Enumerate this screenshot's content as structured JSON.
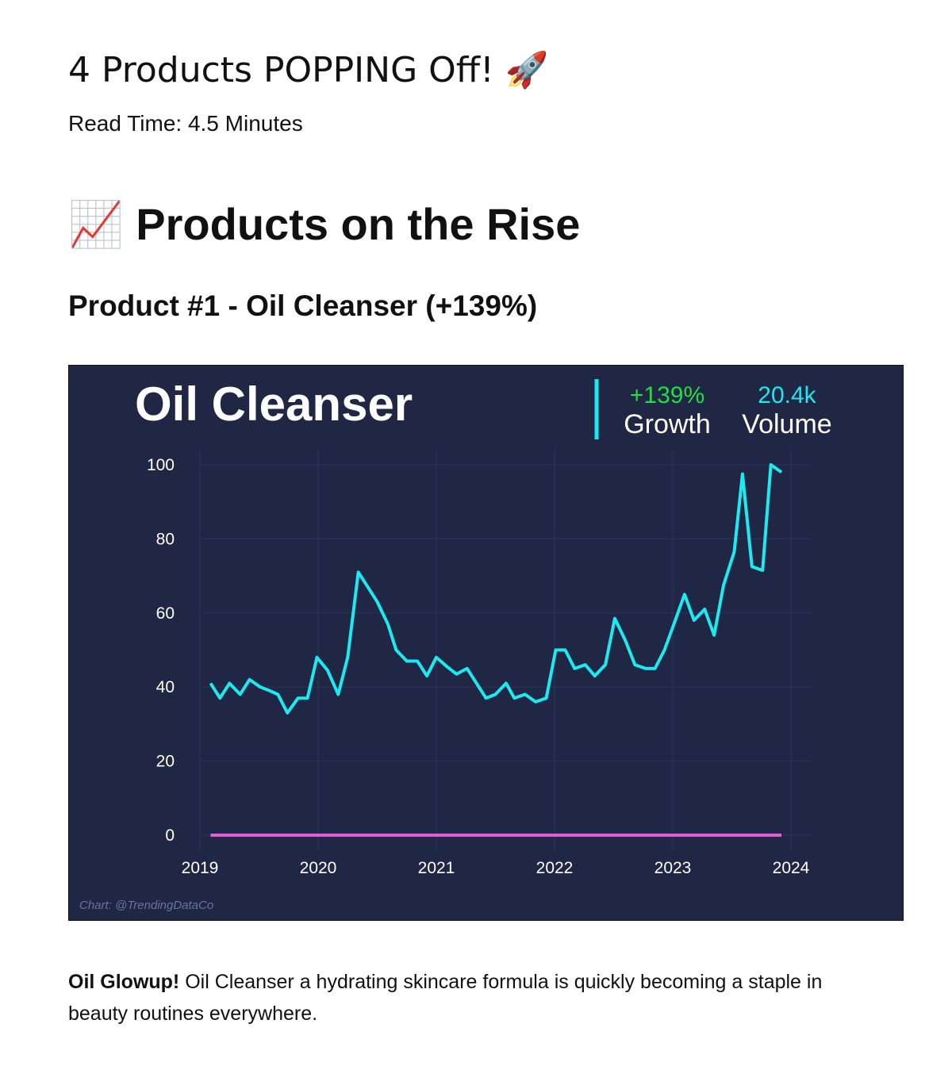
{
  "header": {
    "title": "4 Products POPPING Off! 🚀",
    "read_time": "Read Time: 4.5 Minutes"
  },
  "section": {
    "title": "📈 Products on the Rise"
  },
  "product": {
    "title": "Product #1 - Oil Cleanser (+139%)"
  },
  "chart_data": {
    "type": "line",
    "title": "Oil Cleanser",
    "annotations": {
      "growth_value": "+139%",
      "growth_label": "Growth",
      "volume_value": "20.4k",
      "volume_label": "Volume",
      "credit": "Chart: @TrendingDataCo"
    },
    "x": [
      2019.09,
      2019.17,
      2019.25,
      2019.34,
      2019.42,
      2019.51,
      2019.59,
      2019.66,
      2019.74,
      2019.83,
      2019.91,
      2019.99,
      2020.08,
      2020.17,
      2020.25,
      2020.34,
      2020.42,
      2020.5,
      2020.59,
      2020.66,
      2020.75,
      2020.84,
      2020.92,
      2021.0,
      2021.09,
      2021.17,
      2021.26,
      2021.34,
      2021.42,
      2021.5,
      2021.59,
      2021.66,
      2021.75,
      2021.84,
      2021.93,
      2022.01,
      2022.09,
      2022.17,
      2022.26,
      2022.34,
      2022.43,
      2022.51,
      2022.6,
      2022.68,
      2022.77,
      2022.85,
      2022.93,
      2023.01,
      2023.1,
      2023.18,
      2023.27,
      2023.35,
      2023.43,
      2023.52,
      2023.59,
      2023.67,
      2023.76,
      2023.83,
      2023.92
    ],
    "series": [
      {
        "color": "#1de9f0",
        "values": [
          41,
          37,
          41,
          38,
          42,
          40,
          39,
          38,
          33,
          37,
          37,
          48,
          44.5,
          38,
          48,
          71,
          67,
          63,
          57,
          50,
          47,
          47,
          43,
          48,
          45.5,
          43.5,
          45,
          41,
          37,
          38,
          41,
          37,
          38,
          36,
          37,
          50,
          50,
          45,
          46,
          43,
          46,
          58.5,
          52.5,
          46,
          45,
          45,
          50,
          57,
          65,
          58,
          61,
          54,
          67.5,
          76.5,
          97.5,
          72.5,
          71.5,
          100,
          98
        ]
      },
      {
        "color": "#e85ad8",
        "values": [
          0,
          0,
          0,
          0,
          0,
          0,
          0,
          0,
          0,
          0,
          0,
          0,
          0,
          0,
          0,
          0,
          0,
          0,
          0,
          0,
          0,
          0,
          0,
          0,
          0,
          0,
          0,
          0,
          0,
          0,
          0,
          0,
          0,
          0,
          0,
          0,
          0,
          0,
          0,
          0,
          0,
          0,
          0,
          0,
          0,
          0,
          0,
          0,
          0,
          0,
          0,
          0,
          0,
          0,
          0,
          0,
          0,
          0,
          0
        ]
      }
    ],
    "xlim": [
      2019,
      2024
    ],
    "xticks": [
      2019,
      2020,
      2021,
      2022,
      2023,
      2024
    ],
    "ylim": [
      0,
      100
    ],
    "yticks": [
      0,
      20,
      40,
      60,
      80,
      100
    ],
    "grid": true
  },
  "body": {
    "lead": "Oil Glowup!",
    "text": " Oil Cleanser a hydrating skincare formula is quickly becoming a staple in beauty routines everywhere."
  }
}
